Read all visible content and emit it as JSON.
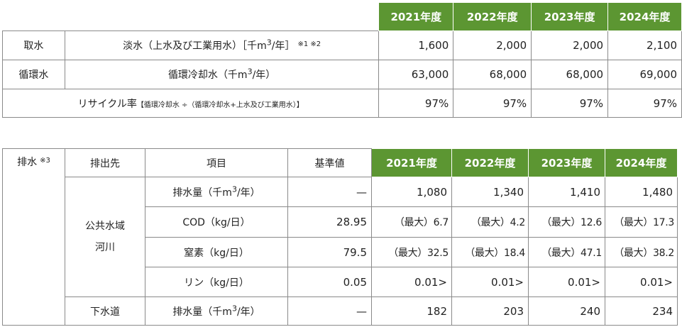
{
  "table1": {
    "years": [
      "2021年度",
      "2022年度",
      "2023年度",
      "2024年度"
    ],
    "rows": [
      {
        "label": "取水",
        "item_prefix": "淡水（上水及び工業用水）［千m",
        "item_sup": "3",
        "item_suffix": "/年］",
        "note": "※1 ※2",
        "values": [
          "1,600",
          "2,000",
          "2,000",
          "2,100"
        ]
      },
      {
        "label": "循環水",
        "item_prefix": "循環冷却水（千m",
        "item_sup": "3",
        "item_suffix": "/年）",
        "values": [
          "63,000",
          "68,000",
          "68,000",
          "69,000"
        ]
      }
    ],
    "recycle": {
      "label": "リサイクル率",
      "formula": "【循環冷却水 ÷（循環冷却水+上水及び工業用水）】",
      "values": [
        "97%",
        "97%",
        "97%",
        "97%"
      ]
    }
  },
  "table2": {
    "section_label": "排水",
    "section_note": "※3",
    "headers": {
      "destination": "排出先",
      "item": "項目",
      "standard": "基準値"
    },
    "years": [
      "2021年度",
      "2022年度",
      "2023年度",
      "2024年度"
    ],
    "public_water": {
      "dest_line1": "公共水域",
      "dest_line2": "河川",
      "rows": [
        {
          "item_prefix": "排水量（千m",
          "item_sup": "3",
          "item_suffix": "/年）",
          "standard": "—",
          "values": [
            "1,080",
            "1,340",
            "1,410",
            "1,480"
          ]
        },
        {
          "item": "COD（kg/日）",
          "standard": "28.95",
          "values": [
            "（最大）6.7",
            "（最大）4.2",
            "（最大）12.6",
            "（最大）17.3"
          ]
        },
        {
          "item": "窒素（kg/日）",
          "standard": "79.5",
          "values": [
            "（最大）32.5",
            "（最大）18.4",
            "（最大）47.1",
            "（最大）38.2"
          ]
        },
        {
          "item": "リン（kg/日）",
          "standard": "0.05",
          "values": [
            "0.01>",
            "0.01>",
            "0.01>",
            "0.01>"
          ]
        }
      ]
    },
    "sewer": {
      "dest": "下水道",
      "item_prefix": "排水量（千m",
      "item_sup": "3",
      "item_suffix": "/年）",
      "standard": "—",
      "values": [
        "182",
        "203",
        "240",
        "234"
      ]
    }
  }
}
